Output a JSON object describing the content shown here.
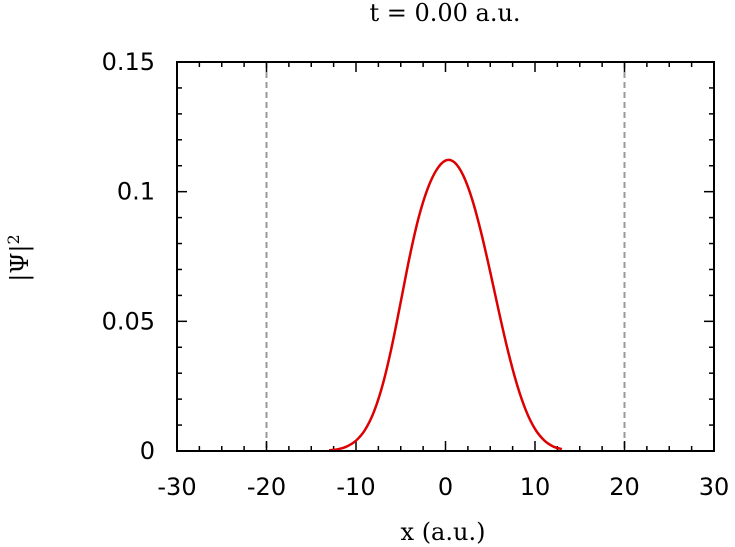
{
  "chart_data": {
    "type": "line",
    "title": "t =  0.00 a.u.",
    "xlabel": "x (a.u.)",
    "ylabel": "|Ψ|",
    "ylabel_superscript": "2",
    "xlim": [
      -30,
      30
    ],
    "ylim": [
      0,
      0.15
    ],
    "x_ticks": [
      -30,
      -20,
      -10,
      0,
      10,
      20,
      30
    ],
    "x_tick_labels": [
      "-30",
      "-20",
      "-10",
      "0",
      "10",
      "20",
      "30"
    ],
    "y_ticks": [
      0,
      0.05,
      0.1,
      0.15
    ],
    "y_tick_labels": [
      "0",
      "0.05",
      "0.1",
      "0.15"
    ],
    "grid": false,
    "reference_lines": [
      {
        "x": -20,
        "style": "dashed",
        "color": "#999999"
      },
      {
        "x": 20,
        "style": "dashed",
        "color": "#999999"
      }
    ],
    "series": [
      {
        "color": "#dd0000",
        "x": [
          -13,
          -12,
          -11,
          -10,
          -9,
          -8,
          -7,
          -6,
          -5,
          -4,
          -3,
          -2,
          -1,
          0,
          1,
          2,
          3,
          4,
          5,
          6,
          7,
          8,
          9,
          10,
          11,
          12,
          13
        ],
        "y": [
          0.0003,
          0.0007,
          0.0018,
          0.004,
          0.0081,
          0.0151,
          0.0258,
          0.0403,
          0.0575,
          0.075,
          0.09,
          0.1011,
          0.1084,
          0.112,
          0.1113,
          0.1061,
          0.0968,
          0.084,
          0.069,
          0.0532,
          0.0383,
          0.0255,
          0.0155,
          0.0085,
          0.0042,
          0.0018,
          0.0007
        ]
      }
    ]
  }
}
